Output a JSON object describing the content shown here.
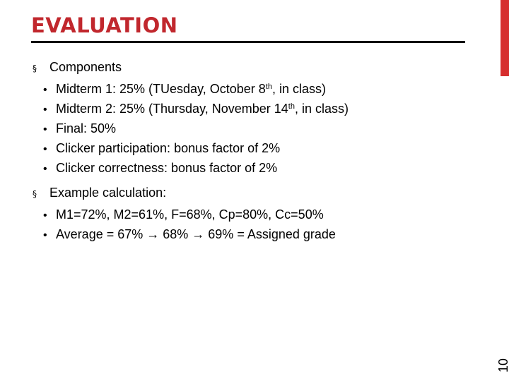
{
  "slide": {
    "title": "EVALUATION",
    "slide_number": "10",
    "accent_color": "#d62e2e",
    "title_color": "#c1272d"
  },
  "sections": [
    {
      "heading": "Components",
      "marker": "§",
      "items": [
        {
          "pre": "Midterm 1: 25% (TUesday, October 8",
          "sup": "th",
          "post": ", in class)"
        },
        {
          "pre": "Midterm 2: 25% (Thursday, November 14",
          "sup": "th",
          "post": ", in class)"
        },
        {
          "pre": "Final: 50%",
          "sup": "",
          "post": ""
        },
        {
          "pre": "Clicker participation: bonus factor of 2%",
          "sup": "",
          "post": ""
        },
        {
          "pre": "Clicker correctness: bonus factor of 2%",
          "sup": "",
          "post": ""
        }
      ]
    },
    {
      "heading": "Example calculation:",
      "marker": "§",
      "items": [
        {
          "pre": "M1=72%, M2=61%, F=68%, Cp=80%, Cc=50%",
          "sup": "",
          "post": ""
        },
        {
          "pre": "Average = 67% → 68% → 69% = Assigned grade",
          "sup": "",
          "post": ""
        }
      ]
    }
  ]
}
